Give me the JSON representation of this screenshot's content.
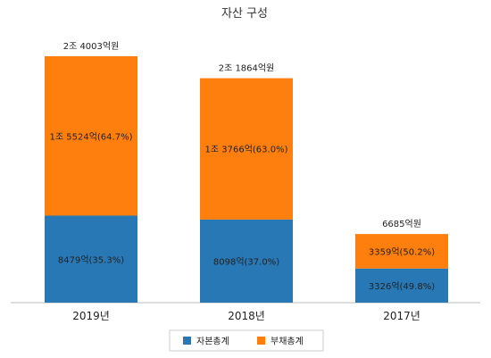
{
  "chart_data": {
    "type": "bar",
    "stacked": true,
    "title": "자산 구성",
    "unit": "억원",
    "categories": [
      "2019년",
      "2018년",
      "2017년"
    ],
    "totals": [
      24003,
      21864,
      6685
    ],
    "total_labels": [
      "2조 4003억원",
      "2조 1864억원",
      "6685억원"
    ],
    "series": [
      {
        "name": "자본총계",
        "color": "#2878b5",
        "values": [
          8479,
          8098,
          3326
        ],
        "labels": [
          "8479억(35.3%)",
          "8098억(37.0%)",
          "3326억(49.8%)"
        ]
      },
      {
        "name": "부채총계",
        "color": "#ff7f0e",
        "values": [
          15524,
          13766,
          3359
        ],
        "labels": [
          "1조 5524억(64.7%)",
          "1조 3766억(63.0%)",
          "3359억(50.2%)"
        ]
      }
    ],
    "legend_position": "bottom",
    "grid": false,
    "ylim": [
      0,
      24003
    ]
  }
}
